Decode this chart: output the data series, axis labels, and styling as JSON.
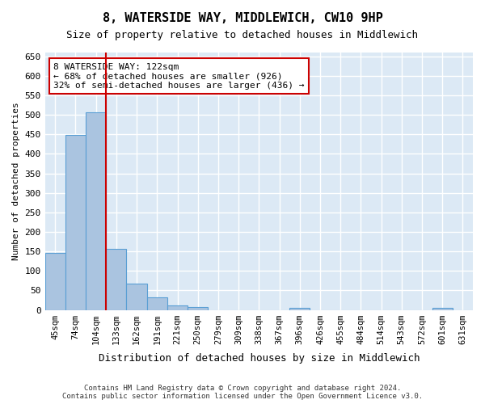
{
  "title": "8, WATERSIDE WAY, MIDDLEWICH, CW10 9HP",
  "subtitle": "Size of property relative to detached houses in Middlewich",
  "xlabel": "Distribution of detached houses by size in Middlewich",
  "ylabel": "Number of detached properties",
  "categories": [
    "45sqm",
    "74sqm",
    "104sqm",
    "133sqm",
    "162sqm",
    "191sqm",
    "221sqm",
    "250sqm",
    "279sqm",
    "309sqm",
    "338sqm",
    "367sqm",
    "396sqm",
    "426sqm",
    "455sqm",
    "484sqm",
    "514sqm",
    "543sqm",
    "572sqm",
    "601sqm",
    "631sqm"
  ],
  "values": [
    147,
    448,
    506,
    157,
    68,
    33,
    12,
    7,
    0,
    0,
    0,
    0,
    5,
    0,
    0,
    0,
    0,
    0,
    0,
    5,
    0
  ],
  "bar_color": "#aac4e0",
  "bar_edgecolor": "#5a9fd4",
  "vline_x": 2.5,
  "vline_color": "#cc0000",
  "annotation_text": "8 WATERSIDE WAY: 122sqm\n← 68% of detached houses are smaller (926)\n32% of semi-detached houses are larger (436) →",
  "annotation_box_color": "#ffffff",
  "annotation_box_edgecolor": "#cc0000",
  "ylim": [
    0,
    660
  ],
  "yticks": [
    0,
    50,
    100,
    150,
    200,
    250,
    300,
    350,
    400,
    450,
    500,
    550,
    600,
    650
  ],
  "bg_color": "#dce9f5",
  "grid_color": "#ffffff",
  "footer": "Contains HM Land Registry data © Crown copyright and database right 2024.\nContains public sector information licensed under the Open Government Licence v3.0."
}
